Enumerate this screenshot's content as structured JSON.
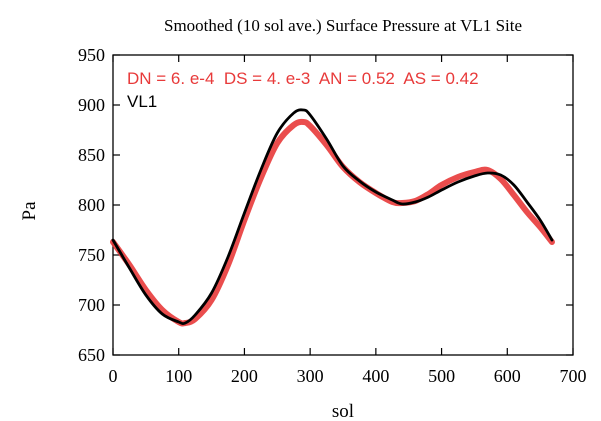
{
  "chart_data": {
    "type": "line",
    "title": "Smoothed (10 sol ave.) Surface Pressure at VL1 Site",
    "xlabel": "sol",
    "ylabel": "Pa",
    "xlim": [
      0,
      700
    ],
    "ylim": [
      650,
      950
    ],
    "xticks": [
      0,
      100,
      200,
      300,
      400,
      500,
      600,
      700
    ],
    "yticks": [
      650,
      700,
      750,
      800,
      850,
      900,
      950
    ],
    "grid": false,
    "legend_position": "top-left",
    "legend": [
      {
        "label": "DN = 6. e-4  DS = 4. e-3  AN = 0.52  AS = 0.42",
        "color": "#e83a3a"
      },
      {
        "label": "VL1",
        "color": "#000000"
      }
    ],
    "series": [
      {
        "color": "#e83a3a",
        "x": [
          0,
          25,
          50,
          75,
          100,
          110,
          125,
          150,
          175,
          200,
          225,
          250,
          275,
          290,
          300,
          325,
          350,
          375,
          400,
          425,
          440,
          460,
          480,
          500,
          525,
          550,
          570,
          590,
          610,
          630,
          650,
          668
        ],
        "y": [
          763,
          740,
          715,
          695,
          683,
          682,
          686,
          705,
          740,
          785,
          827,
          862,
          880,
          883,
          879,
          860,
          838,
          823,
          812,
          803,
          802,
          804,
          811,
          820,
          828,
          833,
          835,
          826,
          810,
          793,
          778,
          763
        ]
      },
      {
        "color": "#000000",
        "x": [
          0,
          25,
          50,
          75,
          100,
          110,
          125,
          150,
          175,
          200,
          225,
          250,
          275,
          290,
          300,
          325,
          350,
          375,
          400,
          425,
          440,
          460,
          480,
          500,
          525,
          550,
          570,
          590,
          610,
          630,
          650,
          668
        ],
        "y": [
          765,
          737,
          710,
          691,
          683,
          682,
          690,
          712,
          748,
          792,
          835,
          872,
          892,
          895,
          890,
          866,
          839,
          824,
          813,
          805,
          801,
          803,
          808,
          815,
          823,
          829,
          832,
          830,
          820,
          803,
          785,
          765
        ]
      }
    ]
  }
}
